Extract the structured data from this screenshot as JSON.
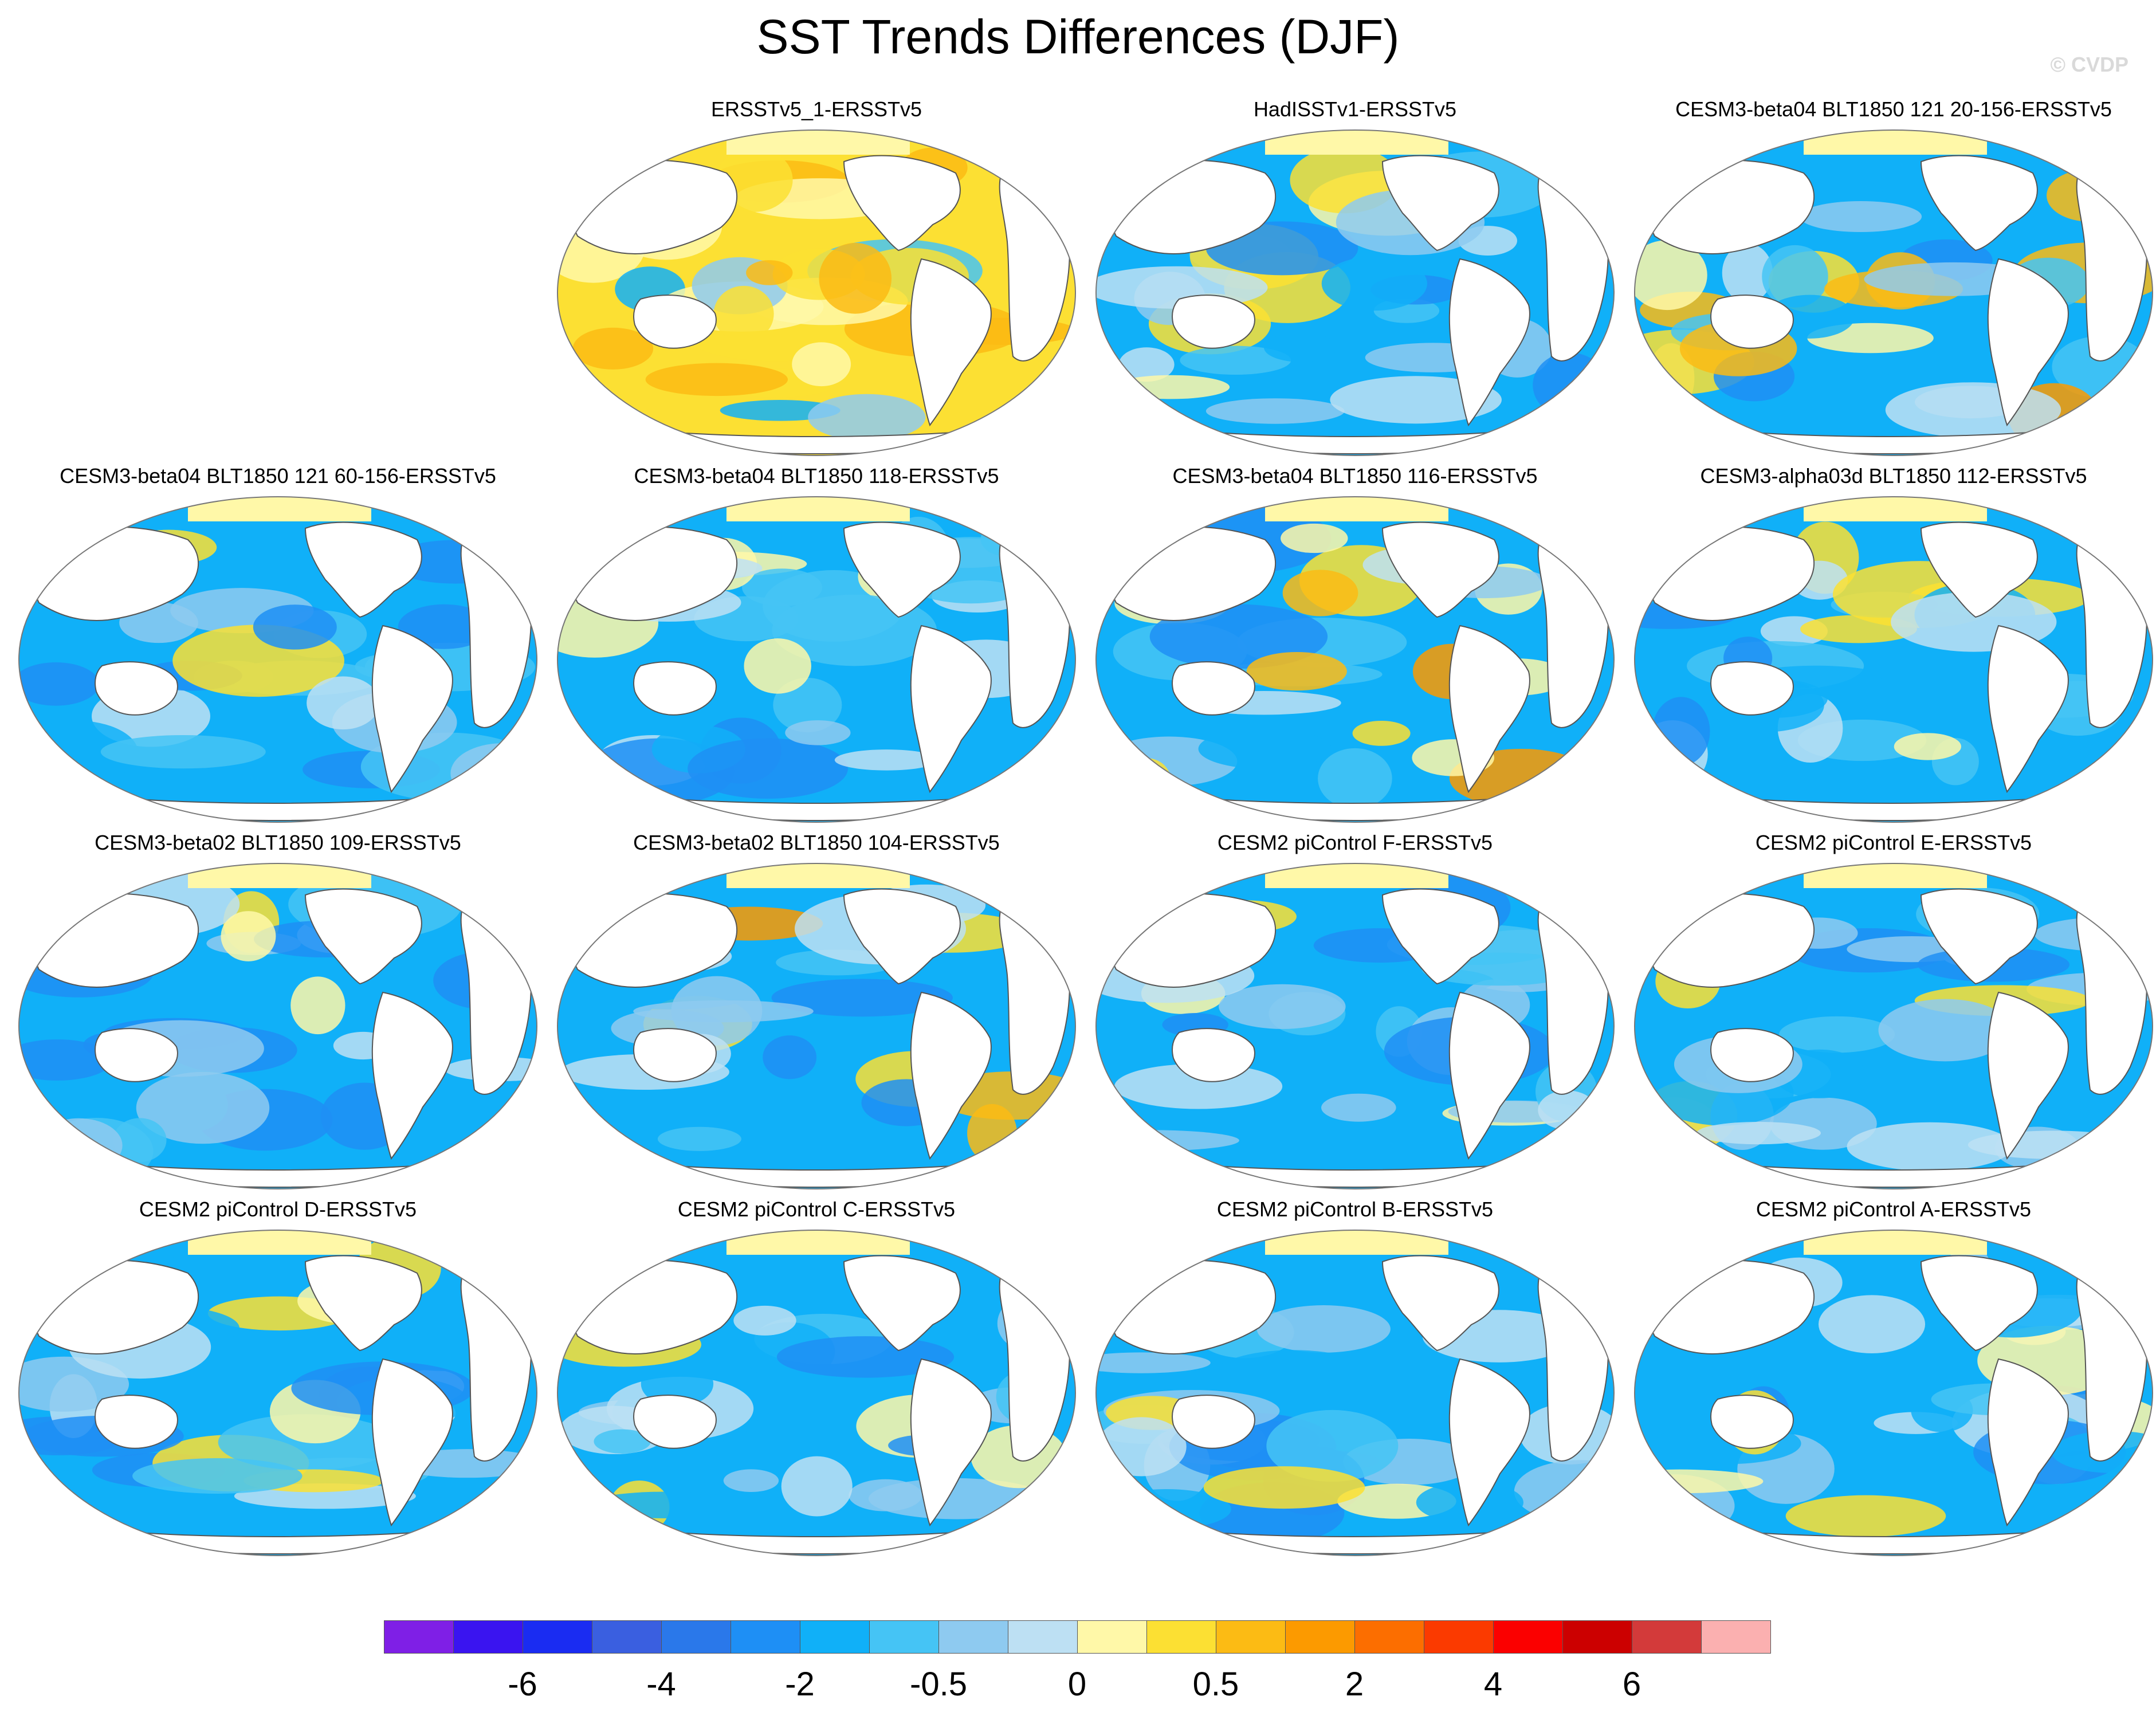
{
  "title": "SST Trends Differences (DJF)",
  "credit": "© CVDP",
  "panels": [
    {
      "title": "ERSSTv5_1-ERSSTv5",
      "tone": "warm"
    },
    {
      "title": "HadISSTv1-ERSSTv5",
      "tone": "cool"
    },
    {
      "title": "CESM3-beta04 BLT1850 121 20-156-ERSSTv5",
      "tone": "mixed"
    },
    {
      "title": "CESM3-beta04 BLT1850 121 60-156-ERSSTv5",
      "tone": "cool"
    },
    {
      "title": "CESM3-beta04 BLT1850 118-ERSSTv5",
      "tone": "cool"
    },
    {
      "title": "CESM3-beta04 BLT1850 116-ERSSTv5",
      "tone": "mixed"
    },
    {
      "title": "CESM3-alpha03d BLT1850 112-ERSSTv5",
      "tone": "cool"
    },
    {
      "title": "CESM3-beta02 BLT1850 109-ERSSTv5",
      "tone": "cool"
    },
    {
      "title": "CESM3-beta02 BLT1850 104-ERSSTv5",
      "tone": "mixed"
    },
    {
      "title": "CESM2 piControl F-ERSSTv5",
      "tone": "cool"
    },
    {
      "title": "CESM2 piControl E-ERSSTv5",
      "tone": "cool"
    },
    {
      "title": "CESM2 piControl D-ERSSTv5",
      "tone": "cool"
    },
    {
      "title": "CESM2 piControl C-ERSSTv5",
      "tone": "cool"
    },
    {
      "title": "CESM2 piControl B-ERSSTv5",
      "tone": "cool"
    },
    {
      "title": "CESM2 piControl A-ERSSTv5",
      "tone": "cool"
    }
  ],
  "colorbar": {
    "colors": [
      "#7f1fe6",
      "#3a14f0",
      "#1a2cf2",
      "#3a5fe0",
      "#2a78ea",
      "#1e8ff5",
      "#10b0f8",
      "#45c4f5",
      "#8ecaf0",
      "#bde0f3",
      "#fff8a8",
      "#fce033",
      "#fcbb14",
      "#fc9a00",
      "#fc6e00",
      "#fb3a00",
      "#fb0000",
      "#cc0000",
      "#d33a3a",
      "#fbb0b0"
    ],
    "labels": [
      "-6",
      "-4",
      "-2",
      "-0.5",
      "0",
      "0.5",
      "2",
      "4",
      "6"
    ],
    "label_boundaries": [
      2,
      4,
      6,
      8,
      10,
      12,
      14,
      16,
      18
    ]
  }
}
